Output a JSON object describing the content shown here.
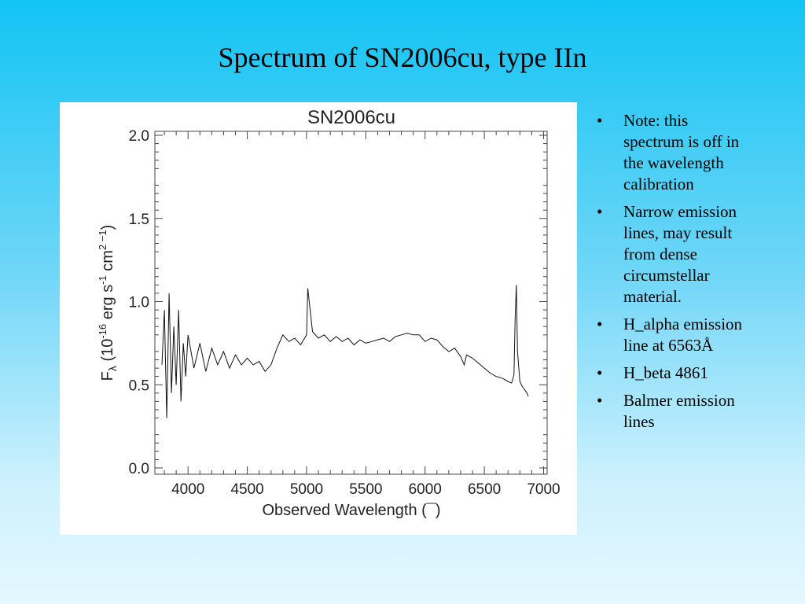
{
  "slide": {
    "title": "Spectrum of SN2006cu, type IIn",
    "bullets": [
      "Note: this spectrum is off in the wavelength calibration",
      "Narrow emission lines, may result from dense circumstellar material.",
      "H_alpha emission line at 6563Å",
      "H_beta 4861",
      "Balmer emission lines"
    ]
  },
  "chart_data": {
    "type": "line",
    "title": "SN2006cu",
    "xlabel": "Observed Wavelength (¯)",
    "ylabel_main": "F",
    "ylabel_sub": "λ",
    "ylabel_rest": " (10",
    "ylabel_sup1": "-16",
    "ylabel_mid": " erg s",
    "ylabel_sup2": "-1",
    "ylabel_mid2": " cm",
    "ylabel_sup3": "2 −1",
    "ylabel_end": ")",
    "xlim": [
      3720,
      7030
    ],
    "ylim": [
      0.0,
      2.0
    ],
    "xticks": [
      4000,
      4500,
      5000,
      5500,
      6000,
      6500,
      7000
    ],
    "yticks": [
      0.0,
      0.5,
      1.0,
      1.5,
      2.0
    ],
    "ytick_labels": [
      "0.0",
      "0.5",
      "1.0",
      "1.5",
      "2.0"
    ],
    "grid": false,
    "series": [
      {
        "x": [
          3780,
          3800,
          3820,
          3840,
          3860,
          3880,
          3900,
          3920,
          3940,
          3960,
          3980,
          4000,
          4050,
          4100,
          4150,
          4200,
          4250,
          4300,
          4350,
          4400,
          4450,
          4500,
          4550,
          4600,
          4650,
          4700,
          4750,
          4800,
          4850,
          4900,
          4950,
          5000,
          5010,
          5050,
          5100,
          5150,
          5200,
          5250,
          5300,
          5350,
          5400,
          5450,
          5500,
          5550,
          5600,
          5650,
          5700,
          5750,
          5800,
          5850,
          5900,
          5950,
          6000,
          6050,
          6100,
          6150,
          6200,
          6250,
          6300,
          6330,
          6350,
          6400,
          6450,
          6500,
          6550,
          6600,
          6650,
          6700,
          6730,
          6750,
          6760,
          6770,
          6780,
          6800,
          6820,
          6840,
          6860,
          6870
        ],
        "y": [
          0.62,
          0.95,
          0.3,
          1.05,
          0.45,
          0.85,
          0.5,
          0.95,
          0.4,
          0.75,
          0.55,
          0.8,
          0.6,
          0.75,
          0.58,
          0.72,
          0.62,
          0.7,
          0.6,
          0.68,
          0.62,
          0.66,
          0.62,
          0.64,
          0.58,
          0.62,
          0.72,
          0.8,
          0.76,
          0.78,
          0.74,
          0.8,
          1.08,
          0.82,
          0.78,
          0.8,
          0.76,
          0.79,
          0.76,
          0.78,
          0.74,
          0.77,
          0.75,
          0.76,
          0.77,
          0.78,
          0.76,
          0.79,
          0.8,
          0.81,
          0.8,
          0.8,
          0.76,
          0.78,
          0.77,
          0.73,
          0.7,
          0.72,
          0.67,
          0.62,
          0.68,
          0.66,
          0.63,
          0.6,
          0.57,
          0.55,
          0.54,
          0.52,
          0.51,
          0.56,
          0.9,
          1.1,
          0.7,
          0.52,
          0.49,
          0.47,
          0.45,
          0.43
        ]
      }
    ]
  }
}
